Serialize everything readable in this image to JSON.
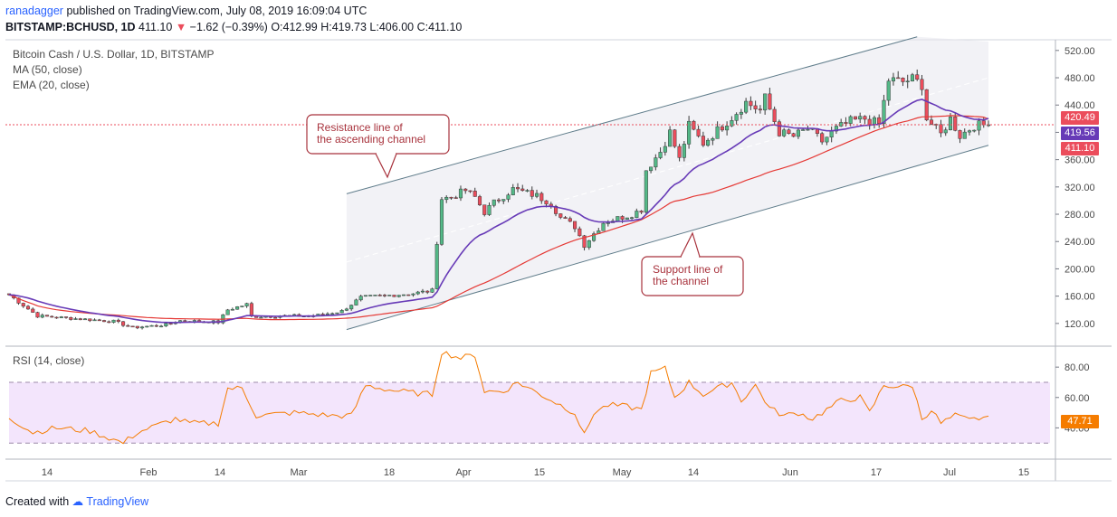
{
  "header": {
    "user": "ranadagger",
    "published": "published on TradingView.com, July 08, 2019 16:09:04 UTC",
    "symbol": "BITSTAMP:BCHUSD, 1D",
    "last": "411.10",
    "change": "−1.62 (−0.39%)",
    "ohlc": "O:412.99 H:419.73 L:406.00 C:411.10"
  },
  "legend": {
    "title": "Bitcoin Cash / U.S. Dollar, 1D, BITSTAMP",
    "ma": "MA (50, close)",
    "ema": "EMA (20, close)",
    "rsi": "RSI (14, close)"
  },
  "annotations": {
    "resistance": [
      "Resistance line of",
      "the ascending channel"
    ],
    "support": [
      "Support line of",
      "the channel"
    ]
  },
  "badges": {
    "ema": "420.49",
    "ma": "419.56",
    "price": "411.10",
    "rsi": "47.71"
  },
  "footer": {
    "created": "Created with",
    "brand": "TradingView"
  },
  "colors": {
    "up": "#53b987",
    "down": "#eb4d5c",
    "ma": "#e53935",
    "ema": "#673ab7",
    "rsi": "#f57c00",
    "rsiBand": "#f3e5fc",
    "channel": "#e8e8ee",
    "channelLine": "#607d8b",
    "annotation": "#a8323c"
  },
  "chart_data": {
    "type": "candlestick",
    "title": "Bitcoin Cash / U.S. Dollar, 1D, BITSTAMP",
    "x_ticks": [
      "14",
      "Feb",
      "14",
      "Mar",
      "18",
      "Apr",
      "15",
      "May",
      "14",
      "Jun",
      "17",
      "Jul",
      "15"
    ],
    "price_axis": {
      "ticks": [
        "520.00",
        "480.00",
        "440.00",
        "400.00",
        "360.00",
        "320.00",
        "280.00",
        "240.00",
        "200.00",
        "160.00",
        "120.00"
      ],
      "range": [
        88,
        533
      ]
    },
    "rsi_axis": {
      "ticks": [
        "80.00",
        "60.00",
        "40.00"
      ],
      "range": [
        20,
        92
      ],
      "overbought": 70,
      "oversold": 30
    },
    "price_keypoints": [
      {
        "day": 0,
        "close": 162
      },
      {
        "day": 6,
        "close": 131
      },
      {
        "day": 14,
        "close": 127
      },
      {
        "day": 22,
        "close": 123
      },
      {
        "day": 26,
        "close": 114
      },
      {
        "day": 33,
        "close": 118
      },
      {
        "day": 36,
        "close": 124
      },
      {
        "day": 44,
        "close": 122
      },
      {
        "day": 46,
        "close": 140
      },
      {
        "day": 50,
        "close": 148
      },
      {
        "day": 51,
        "close": 130
      },
      {
        "day": 58,
        "close": 131
      },
      {
        "day": 64,
        "close": 131
      },
      {
        "day": 70,
        "close": 138
      },
      {
        "day": 74,
        "close": 158
      },
      {
        "day": 85,
        "close": 164
      },
      {
        "day": 89,
        "close": 168
      },
      {
        "day": 90,
        "close": 240
      },
      {
        "day": 91,
        "close": 303
      },
      {
        "day": 93,
        "close": 305
      },
      {
        "day": 96,
        "close": 315
      },
      {
        "day": 98,
        "close": 305
      },
      {
        "day": 100,
        "close": 283
      },
      {
        "day": 102,
        "close": 297
      },
      {
        "day": 106,
        "close": 317
      },
      {
        "day": 111,
        "close": 307
      },
      {
        "day": 114,
        "close": 296
      },
      {
        "day": 116,
        "close": 275
      },
      {
        "day": 119,
        "close": 262
      },
      {
        "day": 121,
        "close": 235
      },
      {
        "day": 125,
        "close": 268
      },
      {
        "day": 128,
        "close": 274
      },
      {
        "day": 131,
        "close": 280
      },
      {
        "day": 133,
        "close": 287
      },
      {
        "day": 134,
        "close": 345
      },
      {
        "day": 137,
        "close": 372
      },
      {
        "day": 139,
        "close": 400
      },
      {
        "day": 141,
        "close": 360
      },
      {
        "day": 143,
        "close": 410
      },
      {
        "day": 146,
        "close": 384
      },
      {
        "day": 149,
        "close": 403
      },
      {
        "day": 152,
        "close": 422
      },
      {
        "day": 155,
        "close": 444
      },
      {
        "day": 158,
        "close": 432
      },
      {
        "day": 159,
        "close": 450
      },
      {
        "day": 162,
        "close": 400
      },
      {
        "day": 165,
        "close": 394
      },
      {
        "day": 168,
        "close": 405
      },
      {
        "day": 171,
        "close": 387
      },
      {
        "day": 174,
        "close": 405
      },
      {
        "day": 177,
        "close": 416
      },
      {
        "day": 180,
        "close": 420
      },
      {
        "day": 183,
        "close": 412
      },
      {
        "day": 185,
        "close": 477
      },
      {
        "day": 188,
        "close": 474
      },
      {
        "day": 190,
        "close": 478
      },
      {
        "day": 192,
        "close": 470
      },
      {
        "day": 193,
        "close": 420
      },
      {
        "day": 196,
        "close": 397
      },
      {
        "day": 198,
        "close": 420
      },
      {
        "day": 200,
        "close": 395
      },
      {
        "day": 203,
        "close": 410
      },
      {
        "day": 206,
        "close": 411.1
      }
    ],
    "rsi_keypoints": [
      {
        "day": 0,
        "value": 47
      },
      {
        "day": 5,
        "value": 37
      },
      {
        "day": 10,
        "value": 40
      },
      {
        "day": 17,
        "value": 38
      },
      {
        "day": 24,
        "value": 30
      },
      {
        "day": 27,
        "value": 37
      },
      {
        "day": 35,
        "value": 46
      },
      {
        "day": 38,
        "value": 43
      },
      {
        "day": 44,
        "value": 43
      },
      {
        "day": 46,
        "value": 66
      },
      {
        "day": 49,
        "value": 66
      },
      {
        "day": 52,
        "value": 48
      },
      {
        "day": 60,
        "value": 50
      },
      {
        "day": 68,
        "value": 48
      },
      {
        "day": 72,
        "value": 48
      },
      {
        "day": 75,
        "value": 68
      },
      {
        "day": 80,
        "value": 65
      },
      {
        "day": 85,
        "value": 63
      },
      {
        "day": 89,
        "value": 62
      },
      {
        "day": 91,
        "value": 90
      },
      {
        "day": 95,
        "value": 86
      },
      {
        "day": 98,
        "value": 88
      },
      {
        "day": 100,
        "value": 64
      },
      {
        "day": 104,
        "value": 64
      },
      {
        "day": 107,
        "value": 70
      },
      {
        "day": 110,
        "value": 65
      },
      {
        "day": 116,
        "value": 55
      },
      {
        "day": 119,
        "value": 50
      },
      {
        "day": 121,
        "value": 35
      },
      {
        "day": 123,
        "value": 50
      },
      {
        "day": 126,
        "value": 55
      },
      {
        "day": 130,
        "value": 54
      },
      {
        "day": 133,
        "value": 52
      },
      {
        "day": 135,
        "value": 76
      },
      {
        "day": 138,
        "value": 79
      },
      {
        "day": 140,
        "value": 60
      },
      {
        "day": 143,
        "value": 70
      },
      {
        "day": 146,
        "value": 62
      },
      {
        "day": 149,
        "value": 66
      },
      {
        "day": 152,
        "value": 70
      },
      {
        "day": 154,
        "value": 58
      },
      {
        "day": 157,
        "value": 68
      },
      {
        "day": 160,
        "value": 53
      },
      {
        "day": 163,
        "value": 48
      },
      {
        "day": 166,
        "value": 50
      },
      {
        "day": 169,
        "value": 46
      },
      {
        "day": 172,
        "value": 52
      },
      {
        "day": 175,
        "value": 58
      },
      {
        "day": 179,
        "value": 60
      },
      {
        "day": 181,
        "value": 50
      },
      {
        "day": 184,
        "value": 68
      },
      {
        "day": 188,
        "value": 67
      },
      {
        "day": 190,
        "value": 68
      },
      {
        "day": 192,
        "value": 46
      },
      {
        "day": 194,
        "value": 52
      },
      {
        "day": 196,
        "value": 43
      },
      {
        "day": 199,
        "value": 48
      },
      {
        "day": 202,
        "value": 45
      },
      {
        "day": 206,
        "value": 47.71
      }
    ],
    "current": {
      "price": 411.1,
      "ema20": 420.49,
      "ma50": 419.56,
      "rsi": 47.71
    }
  }
}
